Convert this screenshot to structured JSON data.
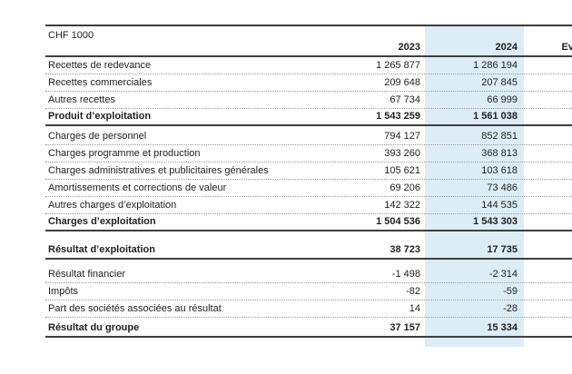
{
  "document": {
    "unit_label": "CHF 1000",
    "columns": {
      "y2023": "2023",
      "y2024": "2024",
      "evolution": "Ev"
    },
    "highlight_color": "#dcedf7",
    "rows": [
      {
        "style": "normal",
        "label": "Recettes de redevance",
        "y2023": "1 265 877",
        "y2024": "1 286 194"
      },
      {
        "style": "normal",
        "label": "Recettes commerciales",
        "y2023": "209 648",
        "y2024": "207 845"
      },
      {
        "style": "normal",
        "label": "Autres recettes",
        "y2023": "67 734",
        "y2024": "66 999"
      },
      {
        "style": "total",
        "label": "Produit d’exploitation",
        "y2023": "1 543 259",
        "y2024": "1 561 038"
      },
      {
        "style": "spacer",
        "h": 2
      },
      {
        "style": "normal",
        "label": "Charges de personnel",
        "y2023": "794 127",
        "y2024": "852 851"
      },
      {
        "style": "normal",
        "label": "Charges programme et production",
        "y2023": "393 260",
        "y2024": "368 813"
      },
      {
        "style": "normal",
        "label": "Charges administratives et publicitaires générales",
        "y2023": "105 621",
        "y2024": "103 618"
      },
      {
        "style": "normal",
        "label": "Amortissements et corrections de valeur",
        "y2023": "69 206",
        "y2024": "73 486"
      },
      {
        "style": "normal",
        "label": "Autres charges d’exploitation",
        "y2023": "142 322",
        "y2024": "144 535"
      },
      {
        "style": "total",
        "label": "Charges d’exploitation",
        "y2023": "1 504 536",
        "y2024": "1 543 303"
      },
      {
        "style": "spacer",
        "h": 12
      },
      {
        "style": "total",
        "label": "Résultat d’exploitation",
        "y2023": "38 723",
        "y2024": "17 735"
      },
      {
        "style": "spacer",
        "h": 7
      },
      {
        "style": "normal",
        "label": "Résultat financier",
        "y2023": "-1 498",
        "y2024": "-2 314"
      },
      {
        "style": "normal",
        "label": "Impôts",
        "y2023": "-82",
        "y2024": "-59"
      },
      {
        "style": "normal",
        "label": "Part des sociétés associées au résultat",
        "y2023": "14",
        "y2024": "-28"
      },
      {
        "style": "spacer",
        "h": 3
      },
      {
        "style": "total",
        "label": "Résultat du groupe",
        "y2023": "37 157",
        "y2024": "15 334"
      }
    ]
  }
}
